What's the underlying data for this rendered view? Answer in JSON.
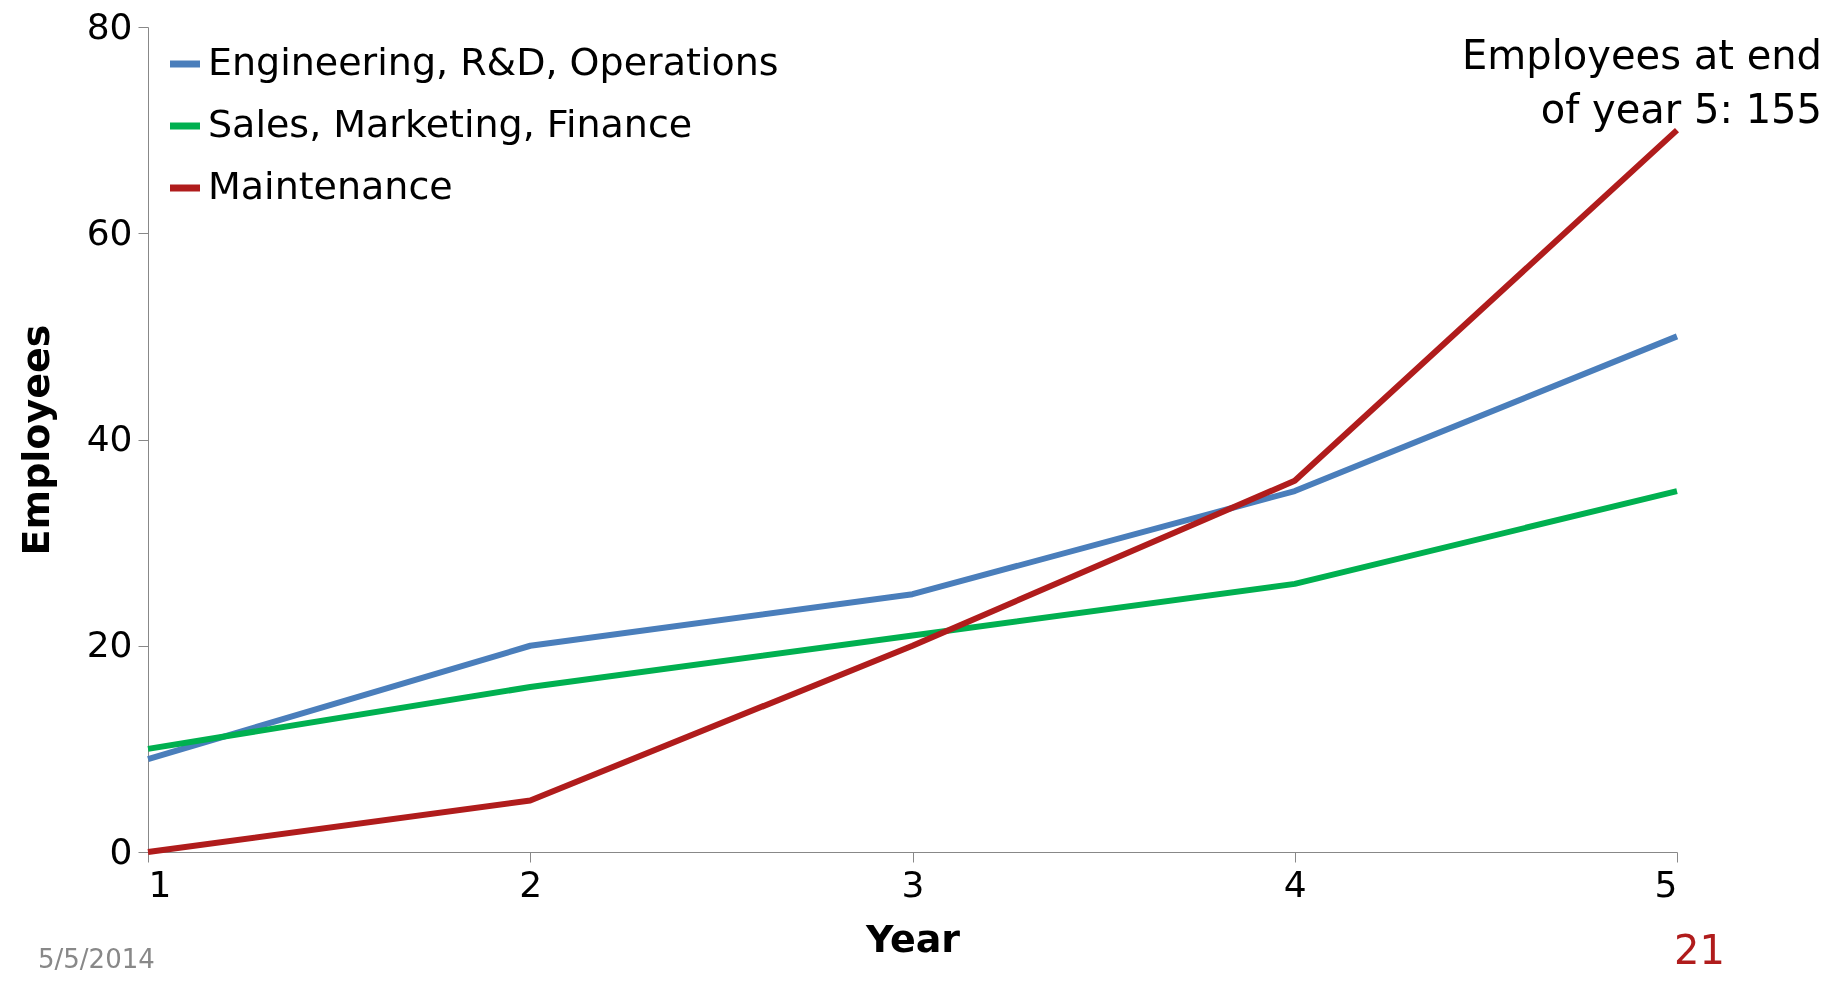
{
  "chart_data": {
    "type": "line",
    "xlabel": "Year",
    "ylabel": "Employees",
    "x": [
      1,
      2,
      3,
      4,
      5
    ],
    "series": [
      {
        "name": "Engineering, R&D, Operations",
        "color": "#4a7ebb",
        "values": [
          9,
          20,
          25,
          35,
          50
        ]
      },
      {
        "name": "Sales, Marketing, Finance",
        "color": "#00b050",
        "values": [
          10,
          16,
          21,
          26,
          35
        ]
      },
      {
        "name": "Maintenance",
        "color": "#b01c1c",
        "values": [
          0,
          5,
          20,
          36,
          70
        ]
      }
    ],
    "xlim": [
      1,
      5
    ],
    "xticks": [
      1,
      2,
      3,
      4,
      5
    ],
    "ylim": [
      0,
      80
    ],
    "yticks": [
      0,
      20,
      40,
      60,
      80
    ],
    "grid": false,
    "legend": "top left",
    "marker": "none",
    "line_style": "solid",
    "annotations": [
      "Employees at end of year 5: 155",
      "5/5/2014",
      "21"
    ]
  }
}
